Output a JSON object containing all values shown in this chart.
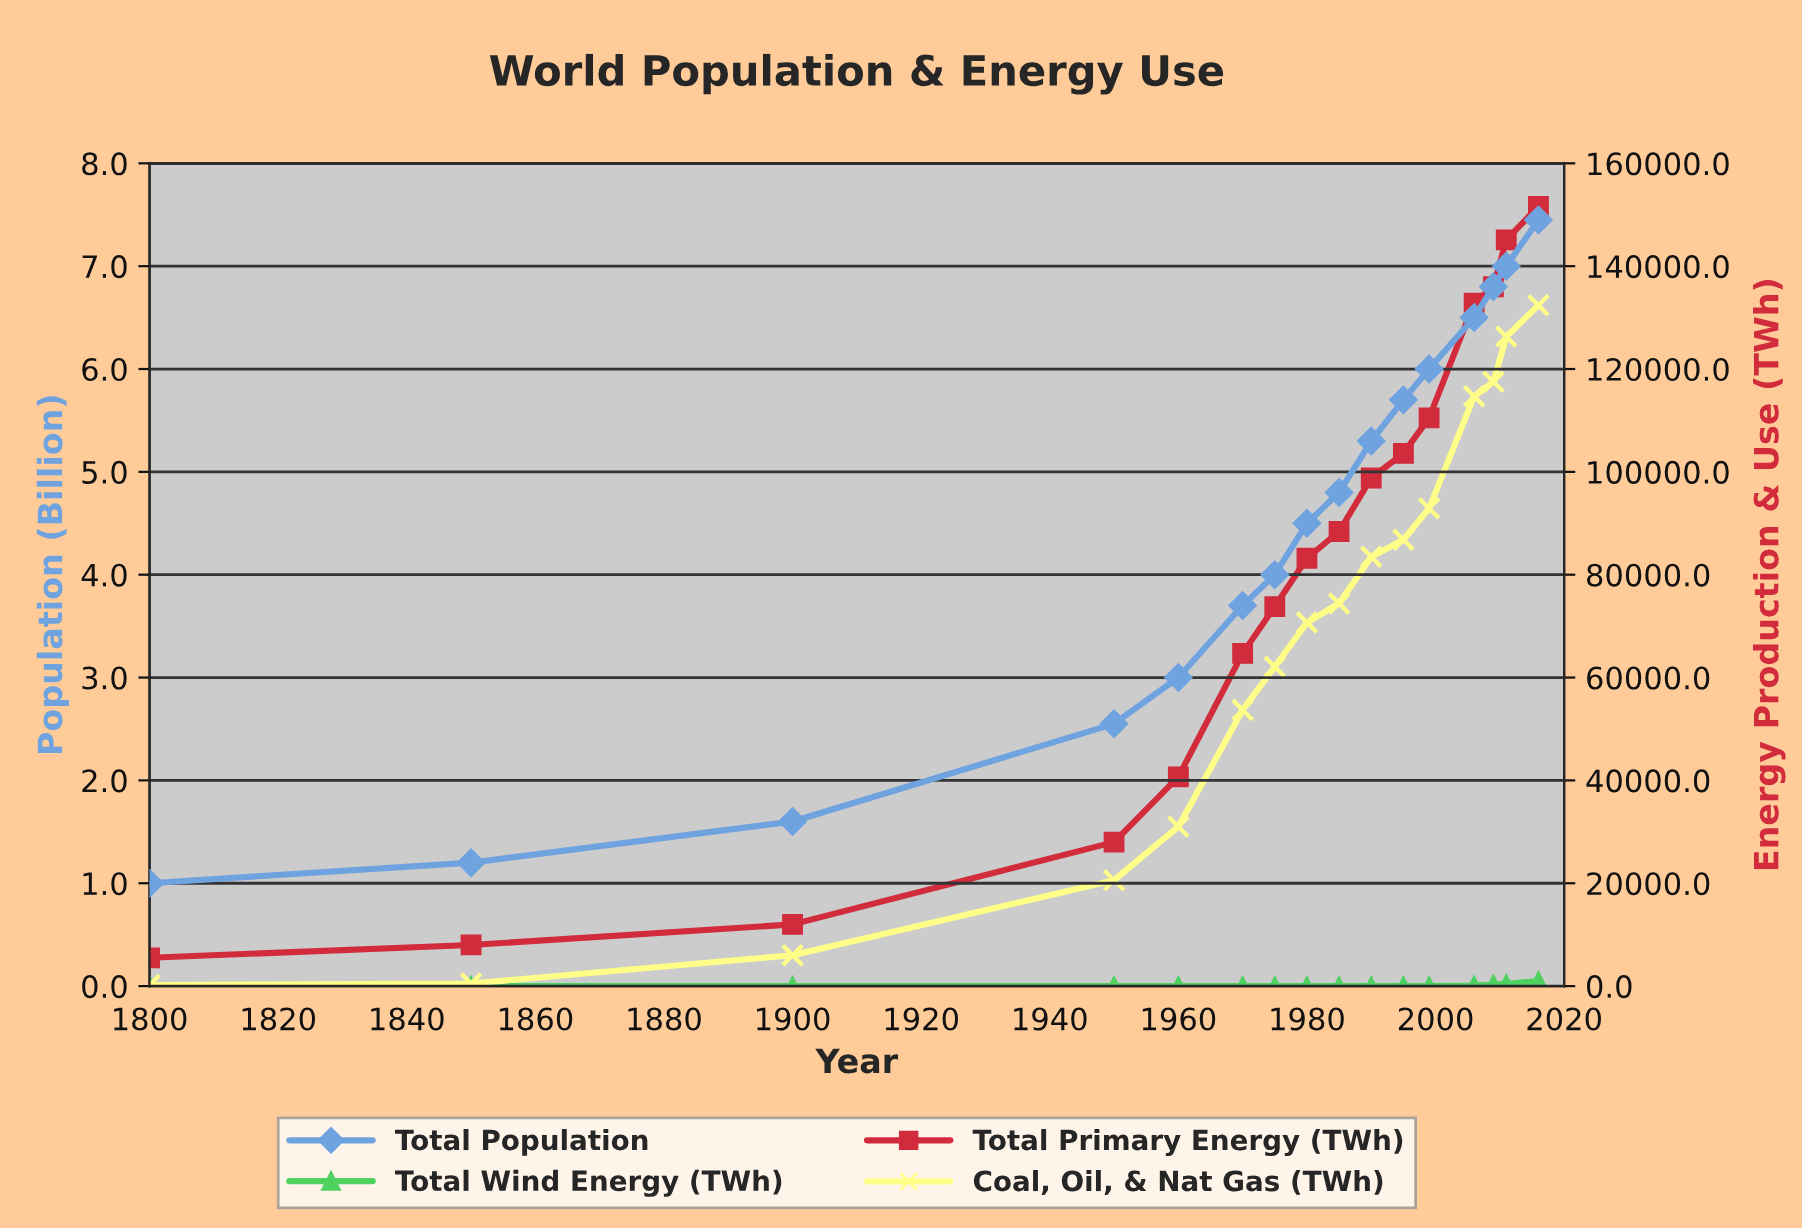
{
  "chart_data": {
    "type": "line",
    "title": "World Population & Energy Use",
    "xlabel": "Year",
    "ylabel": "Population (Billion)",
    "y2label": "Energy Production & Use (TWh)",
    "x": [
      1800,
      1850,
      1900,
      1950,
      1960,
      1970,
      1975,
      1980,
      1985,
      1990,
      1995,
      1999,
      2006,
      2009,
      2011,
      2016
    ],
    "series": [
      {
        "name": "Total Population",
        "color": "#6fa3e0",
        "marker": "diamond",
        "values": [
          1.0,
          1.2,
          1.6,
          2.55,
          3.0,
          3.7,
          4.0,
          4.5,
          4.8,
          5.3,
          5.7,
          6.0,
          6.5,
          6.8,
          7.0,
          7.45
        ]
      },
      {
        "name": "Total Primary Energy (TWh)",
        "color": "#d12b3c",
        "marker": "square",
        "axis": "y2",
        "values": [
          5500,
          8000,
          12000,
          28000,
          40700,
          64700,
          73800,
          83200,
          88400,
          98800,
          103600,
          110500,
          132800,
          136000,
          145100,
          151600
        ]
      },
      {
        "name": "Total Wind Energy (TWh)",
        "color": "#4fd160",
        "marker": "triangle",
        "axis": "y2",
        "values": [
          0,
          0,
          0,
          0,
          0,
          0,
          0,
          0,
          0,
          0,
          0,
          0,
          100,
          300,
          400,
          1000
        ]
      },
      {
        "name": "Coal, Oil, & Nat Gas (TWh)",
        "color": "#ffff88",
        "marker": "cross",
        "axis": "y2",
        "values": [
          200,
          500,
          6000,
          20600,
          31000,
          53700,
          62100,
          70700,
          74400,
          83500,
          86800,
          92900,
          114700,
          117500,
          126300,
          132400
        ]
      }
    ],
    "xlim": [
      1800,
      2020
    ],
    "xticks": [
      1800,
      1820,
      1840,
      1860,
      1880,
      1900,
      1920,
      1940,
      1960,
      1980,
      2000,
      2020
    ],
    "ylim": [
      0,
      8
    ],
    "yticks": [
      {
        "value": 0,
        "label": "0.0"
      },
      {
        "value": 1,
        "label": "1.0"
      },
      {
        "value": 2,
        "label": "2.0"
      },
      {
        "value": 3,
        "label": "3.0"
      },
      {
        "value": 4,
        "label": "4.0"
      },
      {
        "value": 5,
        "label": "5.0"
      },
      {
        "value": 6,
        "label": "6.0"
      },
      {
        "value": 7,
        "label": "7.0"
      },
      {
        "value": 8,
        "label": "8.0"
      }
    ],
    "y2lim": [
      0,
      160000
    ],
    "y2ticks": [
      {
        "value": 0,
        "label": "0.0"
      },
      {
        "value": 20000,
        "label": "20000.0"
      },
      {
        "value": 40000,
        "label": "40000.0"
      },
      {
        "value": 60000,
        "label": "60000.0"
      },
      {
        "value": 80000,
        "label": "80000.0"
      },
      {
        "value": 100000,
        "label": "100000.0"
      },
      {
        "value": 120000,
        "label": "120000.0"
      },
      {
        "value": 140000,
        "label": "140000.0"
      },
      {
        "value": 160000,
        "label": "160000.0"
      }
    ],
    "grid": "y",
    "legend": "bottom",
    "line_style": "solid"
  }
}
